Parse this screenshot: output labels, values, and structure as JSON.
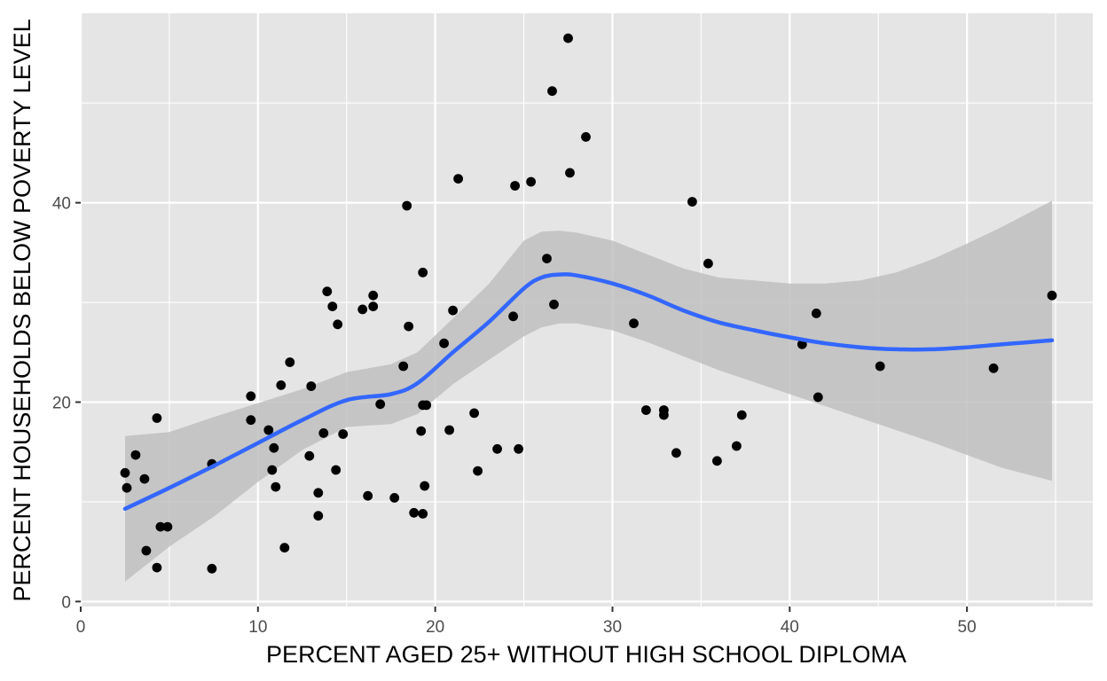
{
  "chart_data": {
    "type": "scatter",
    "title": "",
    "xlabel": "PERCENT AGED 25+ WITHOUT HIGH SCHOOL DIPLOMA",
    "ylabel": "PERCENT HOUSEHOLDS BELOW POVERTY LEVEL",
    "xlim": [
      0,
      57.1
    ],
    "ylim": [
      -0.5,
      59
    ],
    "x_ticks": [
      0,
      10,
      20,
      30,
      40,
      50
    ],
    "y_ticks": [
      0,
      20,
      40
    ],
    "x_tick_labels": [
      "0",
      "10",
      "20",
      "30",
      "40",
      "50"
    ],
    "y_tick_labels": [
      "0",
      "20",
      "40"
    ],
    "grid": true,
    "legend": "none",
    "colors": {
      "panel": "#e5e5e5",
      "grid": "#ffffff",
      "points": "#000000",
      "smooth_line": "#3366ff",
      "confidence_band": "#bfbfbf"
    },
    "points": {
      "x": [
        2.5,
        2.6,
        3.1,
        3.6,
        3.7,
        4.3,
        4.3,
        4.5,
        4.9,
        7.4,
        7.4,
        9.6,
        9.6,
        10.6,
        10.8,
        10.9,
        11.0,
        11.3,
        11.5,
        11.8,
        12.9,
        13.0,
        13.4,
        13.4,
        13.7,
        13.9,
        14.2,
        14.4,
        14.5,
        14.8,
        15.9,
        16.2,
        16.5,
        16.5,
        16.9,
        17.7,
        18.2,
        18.4,
        18.5,
        18.8,
        19.2,
        19.3,
        19.3,
        19.4,
        19.3,
        19.5,
        20.5,
        20.8,
        21.0,
        21.3,
        22.2,
        22.4,
        23.5,
        24.4,
        24.5,
        24.7,
        25.4,
        26.3,
        26.6,
        26.7,
        27.5,
        27.6,
        28.5,
        31.2,
        31.9,
        32.9,
        32.9,
        33.6,
        34.5,
        35.4,
        35.9,
        37.0,
        37.3,
        40.7,
        41.5,
        41.6,
        45.1,
        51.5,
        54.8
      ],
      "y": [
        12.9,
        11.4,
        14.7,
        12.3,
        5.1,
        3.4,
        18.4,
        7.5,
        7.5,
        3.3,
        13.8,
        18.2,
        20.6,
        17.2,
        13.2,
        15.4,
        11.5,
        21.7,
        5.4,
        24.0,
        14.6,
        21.6,
        10.9,
        8.6,
        16.9,
        31.1,
        29.6,
        13.2,
        27.8,
        16.8,
        29.3,
        10.6,
        29.6,
        30.7,
        19.8,
        10.4,
        23.6,
        39.7,
        27.6,
        8.9,
        17.1,
        33.0,
        8.8,
        11.6,
        19.7,
        19.7,
        25.9,
        17.2,
        29.2,
        42.4,
        18.9,
        13.1,
        15.3,
        28.6,
        41.7,
        15.3,
        42.1,
        34.4,
        51.2,
        29.8,
        56.5,
        43.0,
        46.6,
        27.9,
        19.2,
        19.2,
        18.7,
        14.9,
        40.1,
        33.9,
        14.1,
        15.6,
        18.7,
        25.8,
        28.9,
        20.5,
        23.6,
        23.4,
        30.7
      ]
    },
    "smooth": {
      "method": "loess",
      "x": [
        2.5,
        5,
        7.5,
        10,
        12.5,
        15,
        17.5,
        19,
        21,
        23,
        25,
        26,
        27,
        28,
        30,
        32,
        34,
        36,
        38,
        40,
        42,
        44,
        46,
        48,
        50,
        52,
        54.8
      ],
      "y": [
        9.3,
        11.4,
        13.6,
        15.9,
        18.2,
        20.2,
        20.8,
        21.9,
        25.0,
        28.0,
        31.4,
        32.5,
        32.8,
        32.7,
        31.9,
        30.7,
        29.2,
        28.0,
        27.2,
        26.5,
        25.9,
        25.5,
        25.3,
        25.3,
        25.5,
        25.8,
        26.2
      ],
      "lower": [
        2.0,
        5.5,
        8.5,
        12.0,
        15.2,
        17.5,
        17.8,
        18.8,
        21.8,
        24.2,
        26.6,
        27.5,
        27.9,
        27.9,
        27.2,
        26.0,
        24.6,
        23.2,
        22.0,
        20.8,
        19.6,
        18.4,
        17.2,
        16.0,
        14.7,
        13.4,
        12.1
      ],
      "upper": [
        16.6,
        17.0,
        18.5,
        19.9,
        21.3,
        23.0,
        23.8,
        25.0,
        28.4,
        31.8,
        36.2,
        37.1,
        37.2,
        37.0,
        36.2,
        34.8,
        33.4,
        32.5,
        32.2,
        31.9,
        31.9,
        32.2,
        33.0,
        34.3,
        35.9,
        37.6,
        40.2
      ]
    }
  }
}
